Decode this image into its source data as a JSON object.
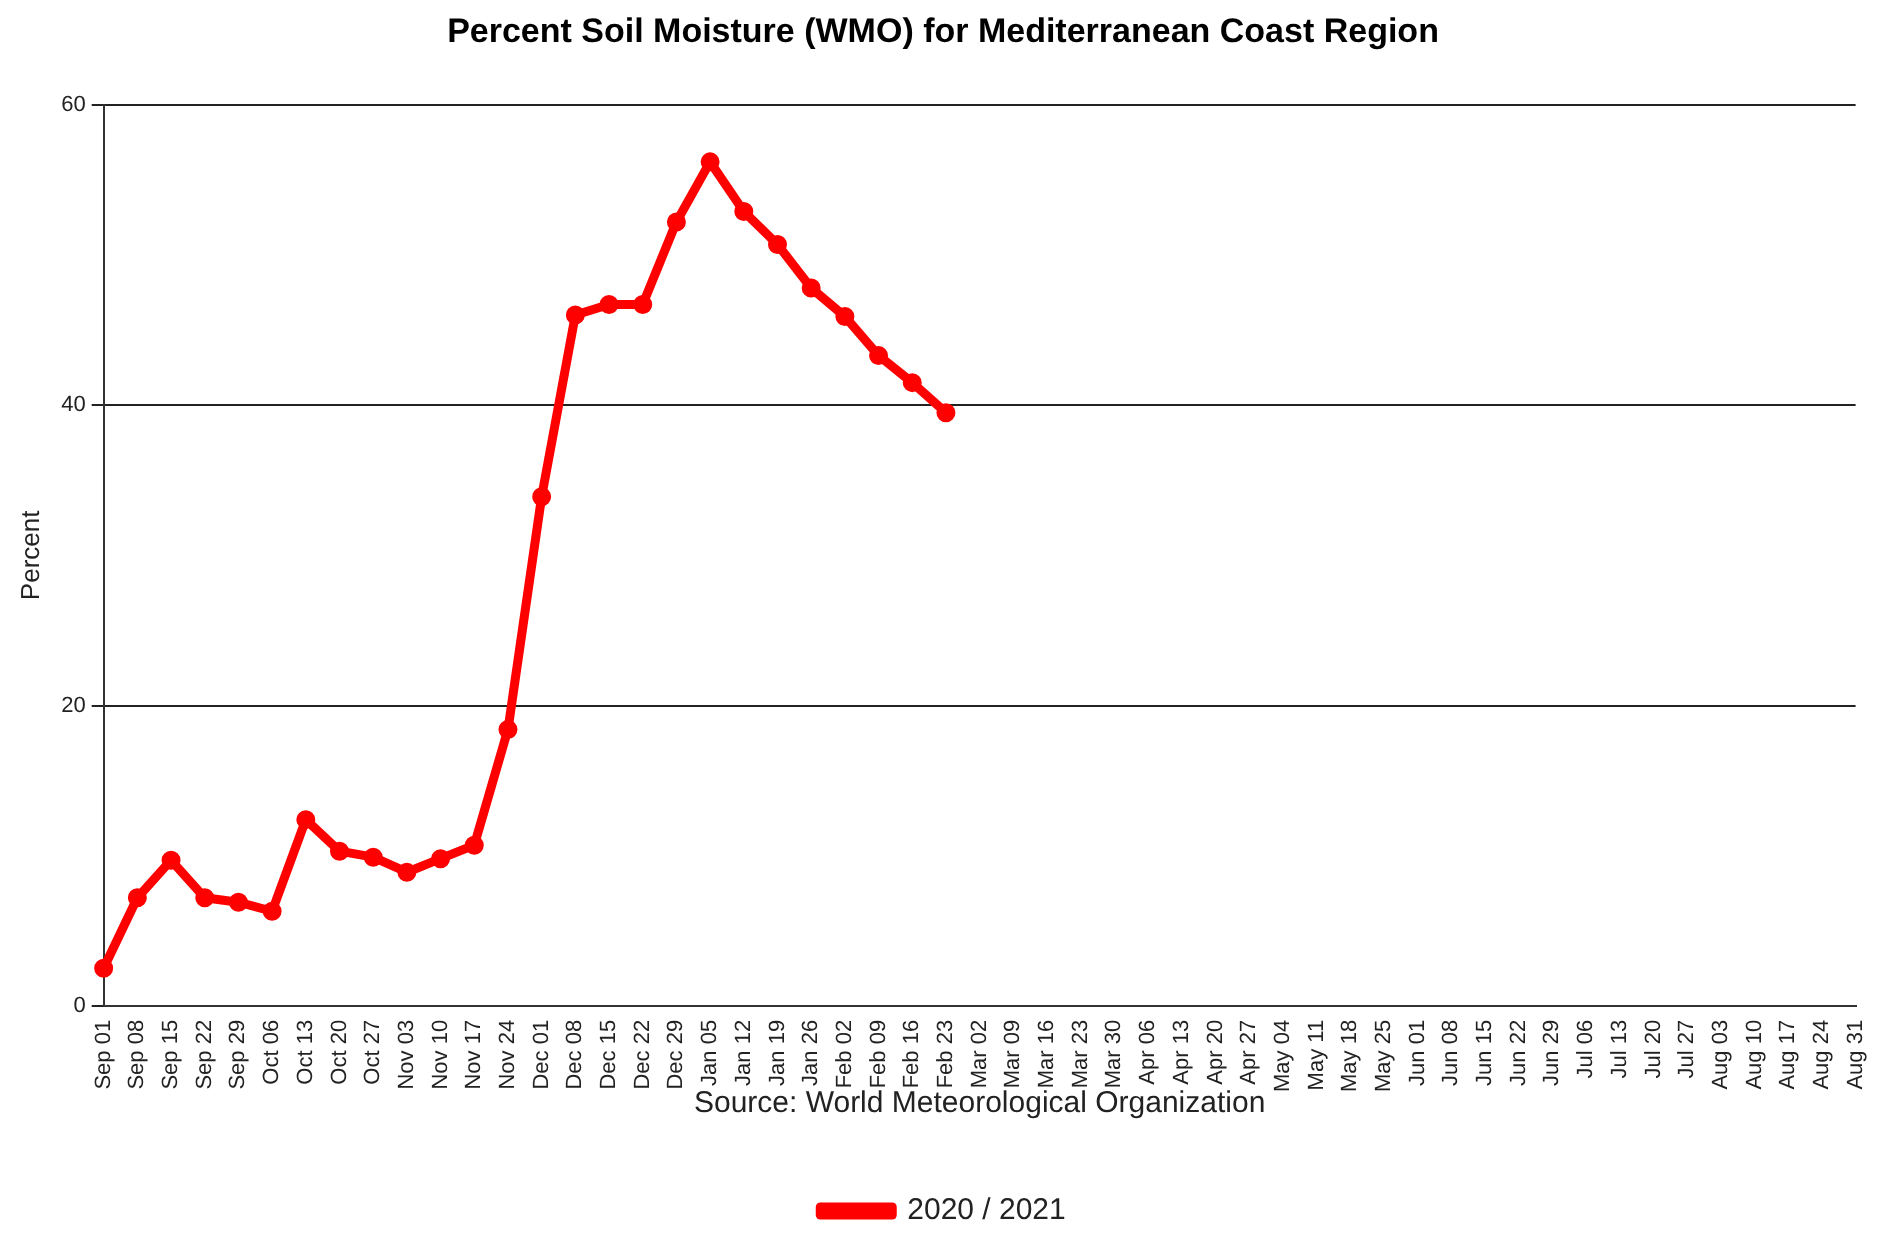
{
  "chart_data": {
    "type": "line",
    "title": "Percent Soil Moisture (WMO) for Mediterranean Coast Region",
    "ylabel": "Percent",
    "annotations": [
      "Source: World Meteorological Organization"
    ],
    "categories": [
      "Sep 01",
      "Sep 08",
      "Sep 15",
      "Sep 22",
      "Sep 29",
      "Oct 06",
      "Oct 13",
      "Oct 20",
      "Oct 27",
      "Nov 03",
      "Nov 10",
      "Nov 17",
      "Nov 24",
      "Dec 01",
      "Dec 08",
      "Dec 15",
      "Dec 22",
      "Dec 29",
      "Jan 05",
      "Jan 12",
      "Jan 19",
      "Jan 26",
      "Feb 02",
      "Feb 09",
      "Feb 16",
      "Feb 23",
      "Mar 02",
      "Mar 09",
      "Mar 16",
      "Mar 23",
      "Mar 30",
      "Apr 06",
      "Apr 13",
      "Apr 20",
      "Apr 27",
      "May 04",
      "May 11",
      "May 18",
      "May 25",
      "Jun 01",
      "Jun 08",
      "Jun 15",
      "Jun 22",
      "Jun 29",
      "Jul 06",
      "Jul 13",
      "Jul 20",
      "Jul 27",
      "Aug 03",
      "Aug 10",
      "Aug 17",
      "Aug 24",
      "Aug 31"
    ],
    "series": [
      {
        "name": "2020 / 2021",
        "color": "#ff0000",
        "values": [
          2.5,
          7.2,
          9.7,
          7.2,
          6.9,
          6.3,
          12.4,
          10.3,
          9.9,
          8.9,
          9.8,
          10.7,
          18.4,
          33.9,
          46.0,
          46.7,
          46.7,
          52.2,
          56.2,
          52.9,
          50.7,
          47.8,
          45.9,
          43.3,
          41.5,
          39.5,
          null,
          null,
          null,
          null,
          null,
          null,
          null,
          null,
          null,
          null,
          null,
          null,
          null,
          null,
          null,
          null,
          null,
          null,
          null,
          null,
          null,
          null,
          null,
          null,
          null,
          null,
          null
        ]
      }
    ],
    "ylim": [
      0,
      60
    ],
    "yticks": [
      0,
      20,
      40,
      60
    ],
    "grid": "y",
    "legend": "bottom",
    "marker": "circle",
    "line_style": "solid"
  }
}
